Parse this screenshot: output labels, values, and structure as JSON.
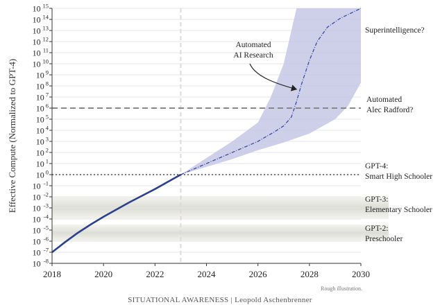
{
  "chart_data": {
    "type": "line",
    "ylabel": "Effective Compute (Normalized to GPT-4)",
    "xlim": [
      2018,
      2030
    ],
    "ylim_log10": [
      -8,
      15
    ],
    "y_scale": "log",
    "x_ticks": [
      "2018",
      "2020",
      "2022",
      "2024",
      "2026",
      "2028",
      "2030"
    ],
    "y_ticks": [
      {
        "base": "10",
        "exp": "15"
      },
      {
        "base": "10",
        "exp": "14"
      },
      {
        "base": "10",
        "exp": "13"
      },
      {
        "base": "10",
        "exp": "12"
      },
      {
        "base": "10",
        "exp": "11"
      },
      {
        "base": "10",
        "exp": "10"
      },
      {
        "base": "10",
        "exp": "9"
      },
      {
        "base": "10",
        "exp": "8"
      },
      {
        "base": "10",
        "exp": "7"
      },
      {
        "base": "10",
        "exp": "6"
      },
      {
        "base": "10",
        "exp": "5"
      },
      {
        "base": "10",
        "exp": "4"
      },
      {
        "base": "10",
        "exp": "3"
      },
      {
        "base": "10",
        "exp": "2"
      },
      {
        "base": "10",
        "exp": "1"
      },
      {
        "base": "10",
        "exp": "0"
      },
      {
        "base": "10",
        "exp": "-1"
      },
      {
        "base": "10",
        "exp": "-2"
      },
      {
        "base": "10",
        "exp": "-3"
      },
      {
        "base": "10",
        "exp": "-4"
      },
      {
        "base": "10",
        "exp": "-5"
      },
      {
        "base": "10",
        "exp": "-6"
      },
      {
        "base": "10",
        "exp": "-7"
      },
      {
        "base": "10",
        "exp": "-8"
      }
    ],
    "series": [
      {
        "style": "solid",
        "color": "#2a3f8f",
        "points": [
          [
            2018,
            -7
          ],
          [
            2018.5,
            -6.1
          ],
          [
            2019,
            -5.25
          ],
          [
            2019.5,
            -4.5
          ],
          [
            2020,
            -3.8
          ],
          [
            2020.5,
            -3.15
          ],
          [
            2021,
            -2.5
          ],
          [
            2021.5,
            -1.9
          ],
          [
            2022,
            -1.3
          ],
          [
            2022.5,
            -0.65
          ],
          [
            2023,
            0
          ]
        ]
      },
      {
        "style": "dash-dot",
        "color": "#3a4aa0",
        "points": [
          [
            2023,
            0
          ],
          [
            2024,
            1.0
          ],
          [
            2025,
            2.0
          ],
          [
            2026,
            3.0
          ],
          [
            2026.6,
            3.8
          ],
          [
            2027.0,
            4.4
          ],
          [
            2027.3,
            5.2
          ],
          [
            2027.5,
            6.6
          ],
          [
            2027.7,
            8.2
          ],
          [
            2028.0,
            10.3
          ],
          [
            2028.3,
            12.0
          ],
          [
            2028.7,
            13.3
          ],
          [
            2029.2,
            14.1
          ],
          [
            2030,
            15
          ]
        ]
      }
    ],
    "uncertainty_band": {
      "color": "#c5c8e6",
      "upper": [
        [
          2023,
          0
        ],
        [
          2024,
          1.5
        ],
        [
          2025,
          3.0
        ],
        [
          2026,
          4.7
        ],
        [
          2026.5,
          7.0
        ],
        [
          2027.0,
          10.0
        ],
        [
          2027.3,
          13.0
        ],
        [
          2027.5,
          15.0
        ],
        [
          2030,
          15.0
        ]
      ],
      "lower": [
        [
          2023,
          0
        ],
        [
          2024,
          0.7
        ],
        [
          2025,
          1.4
        ],
        [
          2026,
          2.2
        ],
        [
          2027,
          2.9
        ],
        [
          2028,
          3.7
        ],
        [
          2029,
          5.0
        ],
        [
          2029.5,
          6.2
        ],
        [
          2030,
          8.3
        ]
      ]
    },
    "reference_lines": [
      {
        "y_log10": 6,
        "style": "dashed",
        "label": [
          "Automated",
          "Alec Radford?"
        ]
      },
      {
        "y_log10": 0,
        "style": "dotted",
        "label": [
          "GPT-4:",
          "Smart High Schooler"
        ]
      }
    ],
    "vertical_line": {
      "x": 2023,
      "style": "dashed"
    },
    "bands": [
      {
        "y_log10_range": [
          -4,
          -2
        ],
        "label": [
          "GPT-3:",
          "Elementary Schooler"
        ]
      },
      {
        "y_log10_range": [
          -6,
          -4.5
        ],
        "label": [
          "GPT-2:",
          "Preschooler"
        ]
      }
    ],
    "annotations": [
      {
        "text": [
          "Superintelligence?"
        ],
        "y_log10": 12.8
      },
      {
        "text": [
          "Automated",
          "AI Research"
        ],
        "arrow_to": [
          2027.6,
          7.7
        ]
      }
    ]
  },
  "footer": "SITUATIONAL AWARENESS | Leopold Aschenbrenner",
  "note": "Rough illustration."
}
